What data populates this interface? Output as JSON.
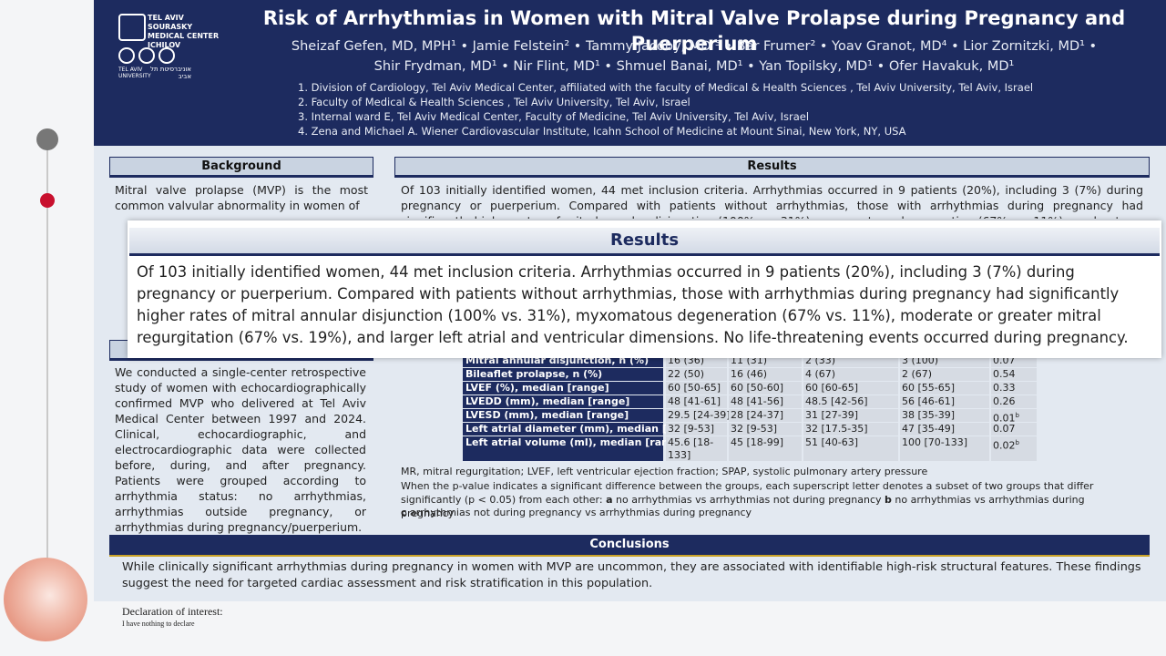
{
  "header": {
    "logo_hospital": "TEL AVIV SOURASKY MEDICAL CENTER ICHILOV",
    "logo_university": "TEL AVIV UNIVERSITY",
    "logo_university_hebrew": "אוניברסיטת תל אביב",
    "title": "Risk of Arrhythmias in Women with Mitral Valve Prolapse during Pregnancy and Puerperium",
    "authors": [
      "Sheizaf Gefen, MD, MPH¹ • Jamie Felstein² • Tammy Jacoby, MD ³ • Bar Frumer² • Yoav Granot, MD⁴ • Lior Zornitzki, MD¹ •",
      "Shir Frydman, MD¹ • Nir Flint, MD¹ • Shmuel Banai, MD¹ • Yan Topilsky, MD¹ • Ofer Havakuk, MD¹"
    ],
    "affiliations": [
      "1.  Division of Cardiology, Tel Aviv Medical Center, affiliated with the faculty of Medical & Health Sciences , Tel Aviv University, Tel Aviv, Israel",
      "2.  Faculty of Medical & Health Sciences , Tel Aviv University, Tel Aviv, Israel",
      "3.  Internal ward E, Tel Aviv Medical Center, Faculty of Medicine, Tel Aviv University, Tel Aviv, Israel",
      "4.  Zena and Michael A. Wiener Cardiovascular Institute, Icahn School of Medicine at Mount Sinai, New York, NY, USA"
    ]
  },
  "background": {
    "heading": "Background",
    "text": "Mitral valve prolapse (MVP) is the most common valvular abnormality in women of"
  },
  "methods": {
    "text": "We conducted a single-center retrospective study of women with echocardiographically confirmed MVP who delivered at Tel Aviv Medical Center between 1997 and 2024. Clinical, echocardiographic, and electrocardiographic data were collected before, during, and after pregnancy. Patients were grouped according to arrhythmia status: no arrhythmias, arrhythmias outside pregnancy, or arrhythmias during pregnancy/puerperium."
  },
  "results": {
    "heading": "Results",
    "text": "Of 103 initially identified women, 44 met inclusion criteria. Arrhythmias occurred in 9 patients (20%), including 3 (7%) during pregnancy or puerperium. Compared with patients without arrhythmias, those with arrhythmias during pregnancy had significantly higher rates of mitral annular disjunction (100% vs. 31%), myxomatous degeneration (67% vs. 11%), moderate or greater mitral regurgitation (67% vs. 19%), and larger left atrial and ventricular dimensions. No life-threatening events occurred during pregnancy."
  },
  "table": {
    "rows": [
      {
        "label": "Mitral annular disjunction, n (%)",
        "cells": [
          "16 (36)",
          "11 (31)",
          "2 (33)",
          "3 (100)"
        ],
        "p": "0.07"
      },
      {
        "label": "Bileaflet prolapse, n (%)",
        "cells": [
          "22 (50)",
          "16 (46)",
          "4 (67)",
          "2 (67)"
        ],
        "p": "0.54"
      },
      {
        "label": "LVEF (%), median [range]",
        "cells": [
          "60 [50-65]",
          "60 [50-60]",
          "60 [60-65]",
          "60 [55-65]"
        ],
        "p": "0.33"
      },
      {
        "label": "LVEDD (mm), median [range]",
        "cells": [
          "48 [41-61]",
          "48 [41-56]",
          "48.5 [42-56]",
          "56 [46-61]"
        ],
        "p": "0.26"
      },
      {
        "label": "LVESD (mm), median [range]",
        "cells": [
          "29.5 [24-39]",
          "28 [24-37]",
          "31 [27-39]",
          "38 [35-39]"
        ],
        "p": "0.01",
        "p_sup": "b"
      },
      {
        "label": "Left atrial diameter (mm), median [range]",
        "cells": [
          "32 [9-53]",
          "32 [9-53]",
          "32 [17.5-35]",
          "47 [35-49]"
        ],
        "p": "0.07"
      },
      {
        "label": "Left atrial volume (ml),  median [range]",
        "cells": [
          "45.6 [18-133]",
          "45 [18-99]",
          "51 [40-63]",
          "100 [70-133]"
        ],
        "p": "0.02",
        "p_sup": "b"
      }
    ],
    "abbreviations": "MR, mitral regurgitation; LVEF, left ventricular ejection fraction; SPAP, systolic pulmonary artery pressure",
    "note": "When the p-value indicates a significant difference between the groups, each superscript letter denotes a subset of two groups that differ significantly (p < 0.05) from each other:",
    "legend": [
      {
        "letter": "a",
        "text": "no arrhythmias vs arrhythmias not during pregnancy"
      },
      {
        "letter": "b",
        "text": "no arrhythmias vs arrhythmias during pregnancy"
      },
      {
        "letter": "c",
        "text": "arrhythmias not during pregnancy vs arrhythmias during pregnancy"
      }
    ]
  },
  "conclusions": {
    "heading": "Conclusions",
    "text": "While clinically significant arrhythmias during pregnancy in women with MVP are uncommon, they are associated with identifiable high-risk structural features. These findings suggest the need for targeted cardiac assessment and risk stratification in this population."
  },
  "declaration": {
    "heading": "Declaration of interest:",
    "text": "I have nothing to declare"
  }
}
